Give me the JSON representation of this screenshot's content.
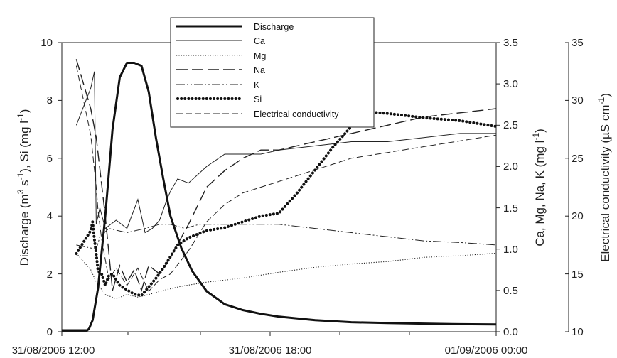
{
  "chart_data": {
    "type": "line",
    "x_unit": "time",
    "x_range": [
      "31/08/2006 12:00",
      "01/09/2006 00:00"
    ],
    "x_ticks": [
      "31/08/2006 12:00",
      "31/08/2006 18:00",
      "01/09/2006 00:00"
    ],
    "left_axis": {
      "label_parts": {
        "a": "Discharge (m",
        "b": "3",
        "c": " s",
        "d": "-1",
        "e": "), Si (mg l",
        "f": "-1",
        "g": ")"
      },
      "ylim": [
        0,
        10
      ],
      "ticks": [
        "0",
        "2",
        "4",
        "6",
        "8",
        "10"
      ]
    },
    "right_axis_1": {
      "label_parts": {
        "a": "Ca, Mg, Na, K (mg l",
        "b": "-1",
        "c": ")"
      },
      "ylim": [
        0,
        3.5
      ],
      "ticks": [
        "0.0",
        "0.5",
        "1.0",
        "1.5",
        "2.0",
        "2.5",
        "3.0",
        "3.5"
      ]
    },
    "right_axis_2": {
      "label_parts": {
        "a": "Electrical conductivity (µS cm",
        "b": "-1",
        "c": ")"
      },
      "ylim": [
        10,
        35
      ],
      "ticks": [
        "10",
        "15",
        "20",
        "25",
        "30",
        "35"
      ]
    },
    "legend": [
      {
        "name": "Discharge",
        "style": "thick-solid"
      },
      {
        "name": "Ca",
        "style": "thin-solid"
      },
      {
        "name": "Mg",
        "style": "dotted"
      },
      {
        "name": "Na",
        "style": "long-dash"
      },
      {
        "name": "K",
        "style": "dash-dot-dot"
      },
      {
        "name": "Si",
        "style": "heavy-dotted"
      },
      {
        "name": "Electrical conductivity",
        "style": "thin-dash"
      }
    ],
    "legend_placement": "top-center",
    "grid": false,
    "series": [
      {
        "key": "discharge",
        "axis": "left",
        "x_hours": [
          0,
          0.7,
          0.75,
          0.85,
          1.0,
          1.2,
          1.4,
          1.6,
          1.8,
          2.0,
          2.2,
          2.4,
          2.6,
          2.8,
          3.0,
          3.3,
          3.6,
          4.0,
          4.5,
          5.0,
          5.5,
          6.0,
          7.0,
          8.0,
          9.0,
          10.0,
          11.0,
          12.0
        ],
        "values": [
          0.05,
          0.05,
          0.1,
          0.4,
          1.5,
          4.0,
          7.0,
          8.8,
          9.3,
          9.3,
          9.2,
          8.3,
          6.7,
          5.3,
          4.0,
          2.9,
          2.1,
          1.4,
          0.95,
          0.75,
          0.62,
          0.52,
          0.4,
          0.33,
          0.3,
          0.28,
          0.26,
          0.25
        ]
      },
      {
        "key": "ca",
        "axis": "right1",
        "x_hours": [
          0.4,
          0.8,
          0.9,
          0.95,
          1.05,
          1.2,
          1.5,
          1.8,
          2.1,
          2.3,
          2.5,
          2.7,
          2.9,
          3.0,
          3.2,
          3.5,
          4.0,
          4.5,
          5.0,
          5.5,
          6.0,
          7.0,
          8.0,
          9.0,
          10.0,
          11.0,
          12.0
        ],
        "values": [
          2.5,
          2.95,
          3.15,
          1.3,
          1.5,
          1.25,
          1.35,
          1.25,
          1.6,
          1.2,
          1.25,
          1.35,
          1.6,
          1.7,
          1.85,
          1.8,
          2.0,
          2.15,
          2.15,
          2.15,
          2.2,
          2.25,
          2.3,
          2.3,
          2.35,
          2.4,
          2.4
        ]
      },
      {
        "key": "mg",
        "axis": "right1",
        "x_hours": [
          0.4,
          0.8,
          0.95,
          1.2,
          1.5,
          1.8,
          2.1,
          2.4,
          2.8,
          3.3,
          4.0,
          5.0,
          6.0,
          7.0,
          8.0,
          9.0,
          10.0,
          11.0,
          12.0
        ],
        "values": [
          0.95,
          0.75,
          0.6,
          0.45,
          0.4,
          0.45,
          0.42,
          0.45,
          0.5,
          0.55,
          0.6,
          0.65,
          0.72,
          0.78,
          0.82,
          0.85,
          0.9,
          0.92,
          0.95
        ]
      },
      {
        "key": "na",
        "axis": "right1",
        "x_hours": [
          0.4,
          0.8,
          0.95,
          1.2,
          1.4,
          1.6,
          1.8,
          2.0,
          2.2,
          2.4,
          2.7,
          3.0,
          3.5,
          4.0,
          4.5,
          5.0,
          5.5,
          6.0,
          7.0,
          8.0,
          9.0,
          10.0,
          11.0,
          12.0
        ],
        "values": [
          3.3,
          2.7,
          2.35,
          1.4,
          0.5,
          0.8,
          0.6,
          0.75,
          0.5,
          0.8,
          0.7,
          0.9,
          1.3,
          1.75,
          1.95,
          2.1,
          2.2,
          2.2,
          2.3,
          2.4,
          2.5,
          2.6,
          2.65,
          2.7
        ]
      },
      {
        "key": "k",
        "axis": "right1",
        "x_hours": [
          0.4,
          0.95,
          1.05,
          1.3,
          1.8,
          2.3,
          2.7,
          3.0,
          3.4,
          3.8,
          4.2,
          4.6,
          5.0,
          5.5,
          6.0,
          7.0,
          8.0,
          9.0,
          10.0,
          11.0,
          12.0
        ],
        "values": [
          1.05,
          1.0,
          1.15,
          1.25,
          1.2,
          1.25,
          1.3,
          1.3,
          1.25,
          1.3,
          1.3,
          1.3,
          1.3,
          1.3,
          1.3,
          1.25,
          1.2,
          1.15,
          1.1,
          1.08,
          1.05
        ]
      },
      {
        "key": "si",
        "axis": "left",
        "x_hours": [
          0.4,
          0.8,
          0.85,
          0.9,
          0.95,
          1.0,
          1.1,
          1.2,
          1.3,
          1.4,
          1.6,
          1.8,
          2.0,
          2.2,
          2.4,
          2.6,
          2.8,
          3.0,
          3.2,
          3.5,
          4.0,
          4.5,
          5.0,
          5.5,
          6.0,
          6.5,
          7.0,
          7.5,
          8.0,
          8.5,
          9.0,
          10.0,
          11.0,
          12.0
        ],
        "values": [
          2.7,
          3.5,
          3.8,
          3.2,
          2.7,
          2.1,
          2.0,
          1.6,
          1.95,
          2.0,
          1.6,
          1.45,
          1.3,
          1.25,
          1.55,
          1.85,
          2.2,
          2.6,
          3.0,
          3.25,
          3.5,
          3.6,
          3.8,
          4.0,
          4.1,
          4.8,
          5.6,
          6.4,
          7.1,
          7.6,
          7.55,
          7.4,
          7.3,
          7.1
        ]
      },
      {
        "key": "ec",
        "axis": "right2",
        "x_hours": [
          0.4,
          0.8,
          0.95,
          1.0,
          1.1,
          1.3,
          1.5,
          1.8,
          2.1,
          2.4,
          2.7,
          3.0,
          3.5,
          4.0,
          4.5,
          5.0,
          5.5,
          6.0,
          7.0,
          8.0,
          9.0,
          10.0,
          11.0,
          12.0
        ],
        "values": [
          33.0,
          27.0,
          22.5,
          20.5,
          18.0,
          14.5,
          15.5,
          14.0,
          15.5,
          13.5,
          14.5,
          15.0,
          17.0,
          19.5,
          21.0,
          22.0,
          22.5,
          23.0,
          24.0,
          25.0,
          25.5,
          26.0,
          26.5,
          27.0
        ]
      }
    ]
  }
}
